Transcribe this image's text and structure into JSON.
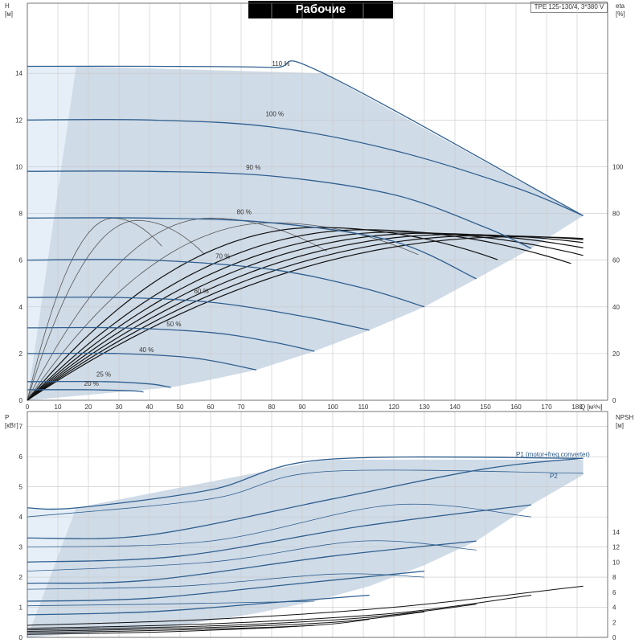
{
  "title": "Рабочие характеристики",
  "pump_id": "TPE 125-130/4, 3*380 V",
  "colors": {
    "envelope": "#cfdbe7",
    "lightband": "#e6eff8",
    "blue": "#2f5f8f",
    "black": "#111111"
  },
  "chart_data": [
    {
      "type": "line",
      "name": "head",
      "ylabel_left": "H",
      "yunit_left": "[м]",
      "ylabel_right": "eta",
      "yunit_right": "[%]",
      "xlabel": "Q [м³/ч]",
      "xlim": [
        0,
        190
      ],
      "ylim": [
        0,
        17
      ],
      "xticks": [
        0,
        10,
        20,
        30,
        40,
        50,
        60,
        70,
        80,
        90,
        100,
        110,
        120,
        130,
        140,
        150,
        160,
        170,
        180
      ],
      "yticks": [
        0,
        2,
        4,
        6,
        8,
        10,
        12,
        14
      ],
      "yticks_right": [
        0,
        20,
        40,
        60,
        80,
        100
      ],
      "yticks_right_at_H": [
        0,
        2,
        4,
        6,
        8,
        10
      ],
      "envelope": [
        [
          0,
          14.3
        ],
        [
          16,
          14.3
        ],
        [
          97,
          14.0
        ],
        [
          182,
          7.9
        ],
        [
          165,
          6.5
        ],
        [
          147,
          5.2
        ],
        [
          130,
          4.0
        ],
        [
          112,
          3.0
        ],
        [
          94,
          2.1
        ],
        [
          75,
          1.3
        ],
        [
          57,
          0.8
        ],
        [
          47,
          0.55
        ],
        [
          0,
          0
        ]
      ],
      "series": [
        {
          "label": "110 %",
          "label_at": [
            83,
            14.25
          ],
          "points": [
            [
              0,
              14.3
            ],
            [
              40,
              14.3
            ],
            [
              80,
              14.25
            ],
            [
              97,
              14.0
            ],
            [
              182,
              7.9
            ]
          ]
        },
        {
          "label": "100 %",
          "label_at": [
            81,
            12.1
          ],
          "points": [
            [
              0,
              12.0
            ],
            [
              40,
              12.0
            ],
            [
              80,
              11.7
            ],
            [
              120,
              10.7
            ],
            [
              160,
              9.1
            ],
            [
              182,
              7.9
            ]
          ]
        },
        {
          "label": "90 %",
          "label_at": [
            74,
            9.8
          ],
          "points": [
            [
              0,
              9.8
            ],
            [
              40,
              9.8
            ],
            [
              80,
              9.6
            ],
            [
              120,
              8.8
            ],
            [
              150,
              7.4
            ],
            [
              165,
              6.5
            ]
          ]
        },
        {
          "label": "80 %",
          "label_at": [
            71,
            7.9
          ],
          "points": [
            [
              0,
              7.8
            ],
            [
              40,
              7.8
            ],
            [
              80,
              7.6
            ],
            [
              120,
              6.8
            ],
            [
              147,
              5.2
            ]
          ]
        },
        {
          "label": "70 %",
          "label_at": [
            64,
            6.0
          ],
          "points": [
            [
              0,
              6.0
            ],
            [
              40,
              6.0
            ],
            [
              80,
              5.6
            ],
            [
              110,
              4.8
            ],
            [
              130,
              4.0
            ]
          ]
        },
        {
          "label": "60 %",
          "label_at": [
            57,
            4.5
          ],
          "points": [
            [
              0,
              4.4
            ],
            [
              30,
              4.4
            ],
            [
              60,
              4.2
            ],
            [
              90,
              3.6
            ],
            [
              112,
              3.0
            ]
          ]
        },
        {
          "label": "50 %",
          "label_at": [
            48,
            3.1
          ],
          "points": [
            [
              0,
              3.1
            ],
            [
              30,
              3.1
            ],
            [
              60,
              2.9
            ],
            [
              80,
              2.5
            ],
            [
              94,
              2.1
            ]
          ]
        },
        {
          "label": "40 %",
          "label_at": [
            39,
            2.0
          ],
          "points": [
            [
              0,
              2.0
            ],
            [
              30,
              2.0
            ],
            [
              55,
              1.8
            ],
            [
              75,
              1.3
            ]
          ]
        },
        {
          "label": "25 %",
          "label_at": [
            25,
            0.95
          ],
          "points": [
            [
              0,
              0.8
            ],
            [
              25,
              0.8
            ],
            [
              40,
              0.7
            ],
            [
              47,
              0.55
            ]
          ]
        },
        {
          "label": "20 %",
          "label_at": [
            21,
            0.55
          ],
          "points": [
            [
              0,
              0.45
            ],
            [
              20,
              0.45
            ],
            [
              35,
              0.4
            ],
            [
              38,
              0.35
            ]
          ]
        }
      ],
      "eta_curves_note": ""
    },
    {
      "type": "line",
      "name": "power",
      "ylabel_left": "P",
      "yunit_left": "[кВт]",
      "ylabel_right": "NPSH",
      "yunit_right": "[м]",
      "xlim": [
        0,
        190
      ],
      "ylim": [
        0,
        7.5
      ],
      "yticks": [
        0,
        1,
        2,
        3,
        4,
        5,
        6,
        7
      ],
      "yticks_right": [
        0,
        2,
        4,
        6,
        8,
        10,
        12,
        14
      ],
      "labels": {
        "p1": "P1 (motor+freq.converter)",
        "p2": "P2"
      },
      "envelope": [
        [
          0,
          4.3
        ],
        [
          16,
          4.3
        ],
        [
          97,
          5.9
        ],
        [
          182,
          5.9
        ],
        [
          182,
          5.4
        ],
        [
          165,
          4.4
        ],
        [
          147,
          3.2
        ],
        [
          130,
          2.4
        ],
        [
          112,
          1.7
        ],
        [
          94,
          1.2
        ],
        [
          75,
          0.8
        ],
        [
          47,
          0.35
        ],
        [
          0,
          0
        ]
      ],
      "p1_curves": [
        [
          [
            0,
            4.3
          ],
          [
            16,
            4.3
          ],
          [
            60,
            4.9
          ],
          [
            97,
            5.9
          ],
          [
            182,
            5.95
          ]
        ],
        [
          [
            0,
            3.3
          ],
          [
            40,
            3.4
          ],
          [
            100,
            4.6
          ],
          [
            150,
            5.6
          ],
          [
            182,
            5.95
          ]
        ],
        [
          [
            0,
            2.5
          ],
          [
            50,
            2.7
          ],
          [
            110,
            3.7
          ],
          [
            165,
            4.4
          ]
        ],
        [
          [
            0,
            1.8
          ],
          [
            40,
            1.9
          ],
          [
            100,
            2.7
          ],
          [
            147,
            3.2
          ]
        ],
        [
          [
            0,
            1.2
          ],
          [
            40,
            1.3
          ],
          [
            90,
            1.8
          ],
          [
            130,
            2.2
          ]
        ],
        [
          [
            0,
            0.75
          ],
          [
            40,
            0.85
          ],
          [
            80,
            1.15
          ],
          [
            112,
            1.4
          ]
        ]
      ],
      "p2_curves": [
        [
          [
            0,
            4.0
          ],
          [
            60,
            4.6
          ],
          [
            97,
            5.5
          ],
          [
            182,
            5.45
          ]
        ],
        [
          [
            0,
            3.0
          ],
          [
            60,
            3.2
          ],
          [
            120,
            4.4
          ],
          [
            165,
            4.0
          ]
        ],
        [
          [
            0,
            2.2
          ],
          [
            60,
            2.5
          ],
          [
            110,
            3.2
          ],
          [
            147,
            2.9
          ]
        ],
        [
          [
            0,
            1.6
          ],
          [
            50,
            1.7
          ],
          [
            100,
            2.1
          ],
          [
            130,
            2.0
          ]
        ],
        [
          [
            0,
            1.05
          ],
          [
            40,
            1.1
          ],
          [
            94,
            1.2
          ]
        ]
      ],
      "npsh_curves": [
        [
          [
            0,
            0.4
          ],
          [
            60,
            0.6
          ],
          [
            120,
            1.0
          ],
          [
            182,
            1.7
          ]
        ],
        [
          [
            0,
            0.3
          ],
          [
            60,
            0.45
          ],
          [
            120,
            0.8
          ],
          [
            165,
            1.4
          ]
        ],
        [
          [
            0,
            0.25
          ],
          [
            60,
            0.38
          ],
          [
            110,
            0.65
          ],
          [
            147,
            1.1
          ]
        ],
        [
          [
            0,
            0.2
          ],
          [
            50,
            0.3
          ],
          [
            100,
            0.5
          ],
          [
            130,
            0.85
          ]
        ],
        [
          [
            0,
            0.15
          ],
          [
            50,
            0.25
          ],
          [
            94,
            0.4
          ],
          [
            112,
            0.6
          ]
        ],
        [
          [
            0,
            0.1
          ],
          [
            40,
            0.17
          ],
          [
            75,
            0.3
          ],
          [
            94,
            0.4
          ]
        ]
      ]
    }
  ]
}
